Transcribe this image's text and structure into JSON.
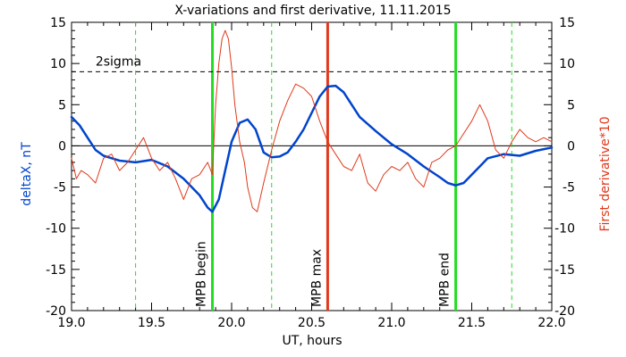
{
  "chart_data": {
    "type": "line",
    "title": "X-variations and first derivative, 11.11.2015",
    "xlabel": "UT, hours",
    "ylabel_left": "deltaX, nT",
    "ylabel_right": "First derivative*10",
    "xlim": [
      19.0,
      22.0
    ],
    "ylim": [
      -20,
      15
    ],
    "x_ticks": [
      "19.0",
      "19.5",
      "20.0",
      "20.5",
      "21.0",
      "21.5",
      "22.0"
    ],
    "x_tick_values": [
      19.0,
      19.5,
      20.0,
      20.5,
      21.0,
      21.5,
      22.0
    ],
    "y_ticks": [
      "15",
      "10",
      "5",
      "0",
      "-5",
      "-10",
      "-15",
      "-20"
    ],
    "y_tick_values": [
      15,
      10,
      5,
      0,
      -5,
      -10,
      -15,
      -20
    ],
    "grid": false,
    "zero_line": 0,
    "threshold": {
      "label": "2sigma",
      "value": 9
    },
    "colors": {
      "deltaX": "#0044cc",
      "derivative": "#e0391b",
      "mpb_boundary": "#22dd22",
      "mpb_max": "#e0391b",
      "dashed_marker": "#22dd22",
      "left_axis_label": "#0044cc",
      "right_axis_label": "#e0391b"
    },
    "vertical_markers": [
      {
        "x": 19.88,
        "label": "MPB begin",
        "style": "solid",
        "kind": "boundary"
      },
      {
        "x": 20.6,
        "label": "MPB max",
        "style": "solid",
        "kind": "max"
      },
      {
        "x": 21.4,
        "label": "MPB end",
        "style": "solid",
        "kind": "boundary"
      }
    ],
    "dashed_markers": [
      19.4,
      20.25,
      21.75
    ],
    "series": [
      {
        "key": "deltaX",
        "x": [
          19.0,
          19.05,
          19.1,
          19.15,
          19.2,
          19.3,
          19.4,
          19.5,
          19.6,
          19.7,
          19.8,
          19.85,
          19.88,
          19.92,
          19.96,
          20.0,
          20.05,
          20.1,
          20.15,
          20.2,
          20.25,
          20.3,
          20.35,
          20.4,
          20.45,
          20.5,
          20.55,
          20.6,
          20.65,
          20.7,
          20.75,
          20.8,
          20.9,
          21.0,
          21.1,
          21.2,
          21.3,
          21.35,
          21.4,
          21.45,
          21.5,
          21.55,
          21.6,
          21.7,
          21.8,
          21.9,
          22.0
        ],
        "y": [
          3.5,
          2.5,
          1.0,
          -0.5,
          -1.2,
          -1.8,
          -2.0,
          -1.7,
          -2.5,
          -4.0,
          -6.0,
          -7.5,
          -8.0,
          -6.5,
          -3.0,
          0.5,
          2.8,
          3.2,
          2.0,
          -0.8,
          -1.4,
          -1.3,
          -0.8,
          0.5,
          2.0,
          4.0,
          6.0,
          7.2,
          7.3,
          6.5,
          5.0,
          3.5,
          1.8,
          0.2,
          -1.0,
          -2.5,
          -3.8,
          -4.5,
          -4.8,
          -4.5,
          -3.5,
          -2.5,
          -1.5,
          -1.0,
          -1.2,
          -0.6,
          -0.2
        ]
      },
      {
        "key": "derivative",
        "x": [
          19.0,
          19.03,
          19.06,
          19.1,
          19.15,
          19.2,
          19.25,
          19.3,
          19.35,
          19.4,
          19.45,
          19.5,
          19.55,
          19.6,
          19.65,
          19.7,
          19.75,
          19.8,
          19.85,
          19.88,
          19.9,
          19.92,
          19.94,
          19.96,
          19.98,
          20.0,
          20.02,
          20.05,
          20.08,
          20.1,
          20.13,
          20.16,
          20.2,
          20.25,
          20.3,
          20.35,
          20.4,
          20.45,
          20.5,
          20.55,
          20.6,
          20.65,
          20.7,
          20.75,
          20.8,
          20.85,
          20.9,
          20.95,
          21.0,
          21.05,
          21.1,
          21.15,
          21.2,
          21.25,
          21.3,
          21.35,
          21.4,
          21.45,
          21.5,
          21.55,
          21.6,
          21.65,
          21.7,
          21.75,
          21.8,
          21.85,
          21.9,
          21.95,
          22.0
        ],
        "y": [
          -1.5,
          -4.0,
          -3.0,
          -3.5,
          -4.5,
          -1.5,
          -1.0,
          -3.0,
          -2.0,
          -0.5,
          1.0,
          -1.5,
          -3.0,
          -2.0,
          -4.0,
          -6.5,
          -4.0,
          -3.5,
          -2.0,
          -3.5,
          5.0,
          10.0,
          13.0,
          14.0,
          13.0,
          9.5,
          5.0,
          0.5,
          -2.0,
          -5.0,
          -7.5,
          -8.0,
          -4.5,
          -0.5,
          3.0,
          5.5,
          7.5,
          7.0,
          6.0,
          3.0,
          0.5,
          -1.0,
          -2.5,
          -3.0,
          -1.0,
          -4.5,
          -5.5,
          -3.5,
          -2.5,
          -3.0,
          -2.0,
          -4.0,
          -5.0,
          -2.0,
          -1.5,
          -0.5,
          0.0,
          1.5,
          3.0,
          5.0,
          3.0,
          -0.5,
          -1.5,
          0.5,
          2.0,
          1.0,
          0.5,
          1.0,
          0.5
        ]
      }
    ]
  }
}
